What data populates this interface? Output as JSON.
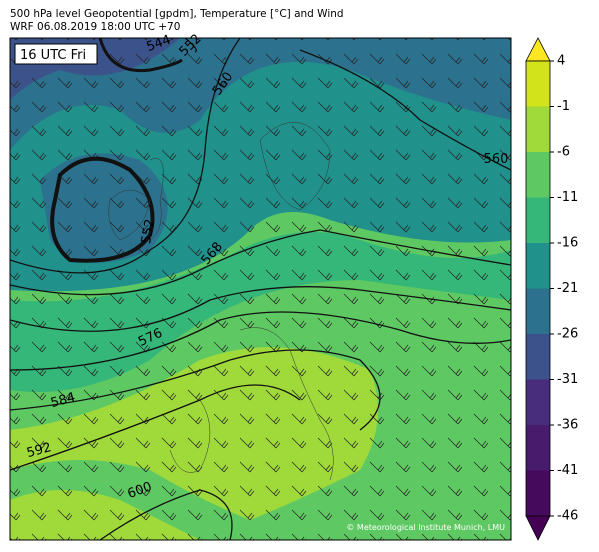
{
  "title": "500 hPa level Geopotential [gpdm], Temperature [°C] and Wind",
  "subtitle": "WRF 06.08.2019 18:00 UTC +70",
  "time_label": "16 UTC Fri",
  "contour_labels": [
    "544",
    "552",
    "560",
    "552",
    "568",
    "576",
    "584",
    "592",
    "600",
    "560"
  ],
  "colorbar": {
    "ticks": [
      4,
      -1,
      -6,
      -11,
      -16,
      -21,
      -26,
      -31,
      -36,
      -41,
      -46
    ],
    "colors": [
      "#d2e21b",
      "#9fda3a",
      "#5ec962",
      "#35b779",
      "#21918c",
      "#2c728e",
      "#3b528b",
      "#472d7b",
      "#481b6d",
      "#460a5d"
    ],
    "over_color": "#fde725",
    "under_color": "#440154"
  },
  "credit": "© Meteorological Institute Munich, LMU"
}
